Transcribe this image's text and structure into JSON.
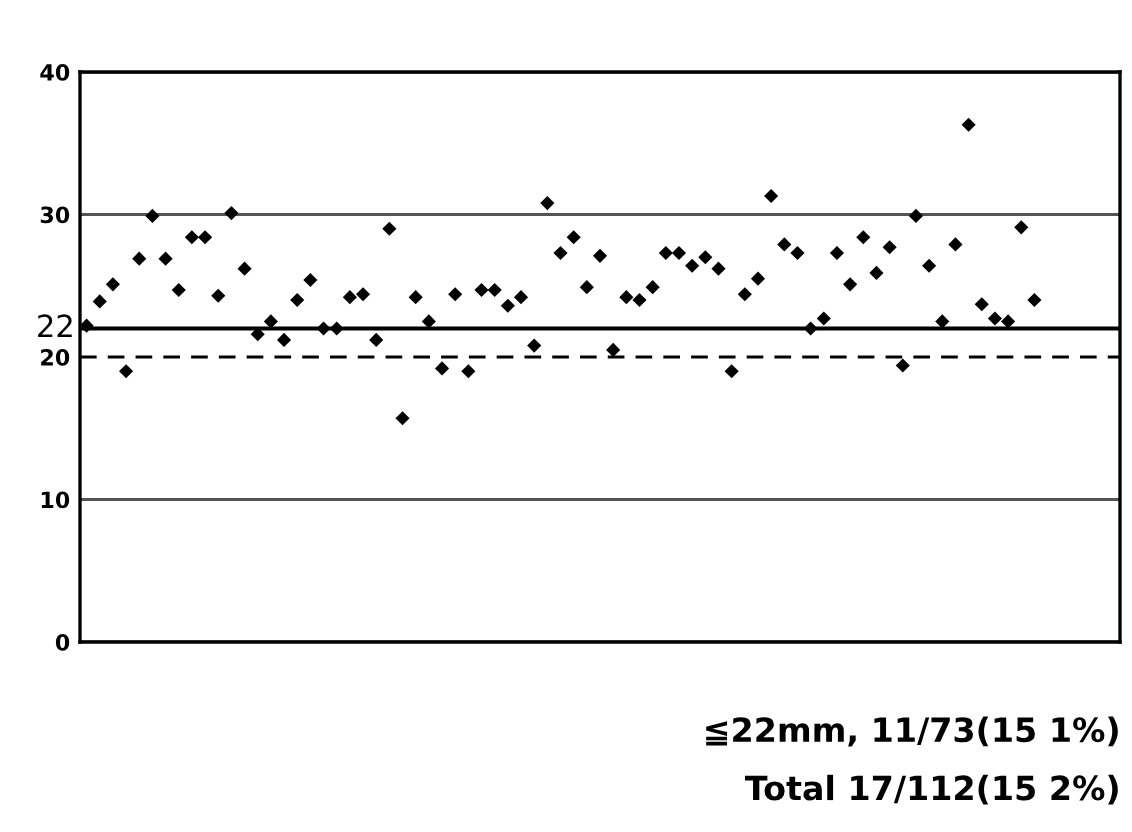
{
  "chart_data": {
    "type": "scatter",
    "categories": [
      null,
      null,
      null,
      null,
      null,
      null,
      null,
      null,
      null,
      null,
      null,
      null,
      null,
      null,
      null,
      null,
      null,
      null,
      null,
      null,
      null,
      null,
      null,
      null,
      null,
      null,
      null,
      null,
      null,
      null,
      null,
      null,
      null,
      null,
      null,
      null,
      null,
      null,
      null,
      null,
      null,
      null,
      null,
      null,
      null,
      null,
      null,
      null,
      null,
      null,
      null,
      null,
      null,
      null,
      null,
      null,
      null,
      null,
      null,
      null,
      null,
      null,
      null,
      null,
      null,
      null,
      null,
      null,
      null,
      null,
      null,
      null,
      null,
      null,
      null,
      null,
      null,
      null,
      null
    ],
    "series": [
      {
        "color": "#000000",
        "values": [
          22.2,
          23.9,
          25.1,
          19.0,
          26.9,
          29.9,
          26.9,
          24.7,
          28.4,
          28.4,
          24.3,
          30.1,
          26.2,
          21.6,
          22.5,
          21.2,
          24.0,
          25.4,
          22.0,
          22.0,
          24.2,
          24.4,
          21.2,
          29.0,
          15.7,
          24.2,
          22.5,
          19.2,
          24.4,
          19.0,
          24.7,
          24.7,
          23.6,
          24.2,
          20.8,
          30.8,
          27.3,
          28.4,
          24.9,
          27.1,
          20.5,
          24.2,
          24.0,
          24.9,
          27.3,
          27.3,
          26.4,
          27.0,
          26.2,
          19.0,
          24.4,
          25.5,
          31.3,
          27.9,
          27.3,
          22.0,
          22.7,
          27.3,
          25.1,
          28.4,
          25.9,
          27.7,
          19.4,
          29.9,
          26.4,
          22.5,
          27.9,
          36.3,
          23.7,
          22.7,
          22.5,
          29.1,
          24.0,
          null,
          null,
          null,
          null,
          null,
          null
        ]
      }
    ],
    "marker": "diamond",
    "ylim": [
      0,
      40
    ],
    "yticks": [
      0,
      10,
      20,
      30,
      40
    ],
    "grid": "y",
    "ref_lines": [
      {
        "axis": "y",
        "value": 22,
        "label": "22",
        "color": "#000000",
        "line_style": "solid"
      },
      {
        "axis": "y",
        "value": 20,
        "label": null,
        "color": "#000000",
        "line_style": "dashed"
      }
    ],
    "annotations": [
      "≦22mm, 11/73(15 1%)",
      "Total 17/112(15 2%)"
    ]
  }
}
